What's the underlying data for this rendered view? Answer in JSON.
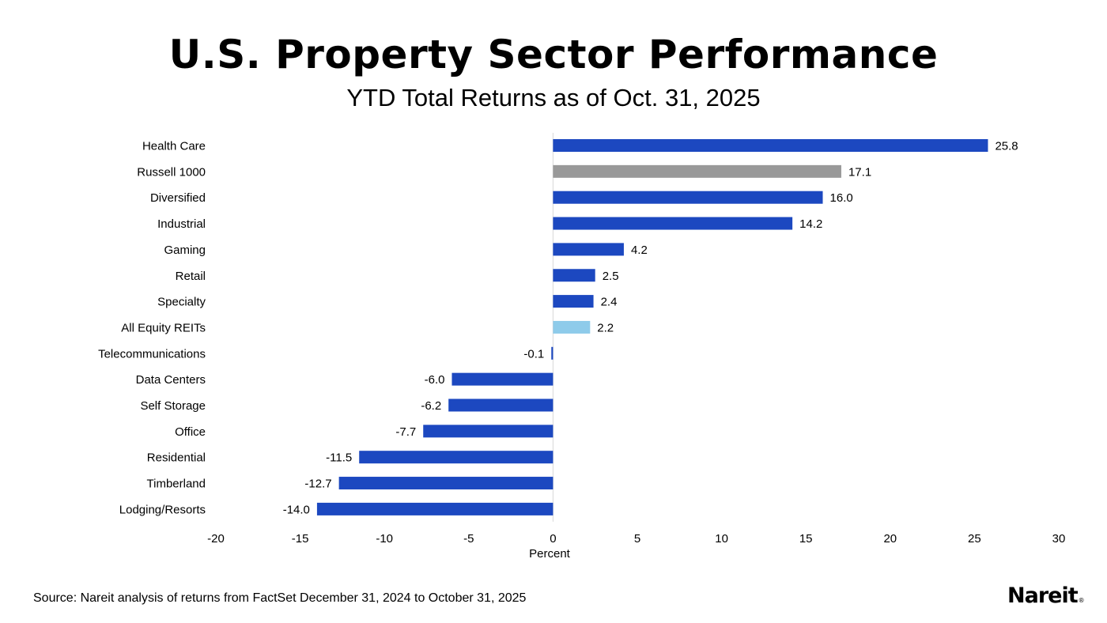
{
  "chart_data": {
    "type": "bar",
    "orientation": "horizontal",
    "title": "U.S. Property Sector Performance",
    "subtitle": "YTD Total Returns as of Oct. 31, 2025",
    "xlabel": "Percent",
    "ylabel": "",
    "xlim": [
      -20,
      30
    ],
    "xticks": [
      -20,
      -15,
      -10,
      -5,
      0,
      5,
      10,
      15,
      20,
      25,
      30
    ],
    "grid": false,
    "categories": [
      "Health Care",
      "Russell 1000",
      "Diversified",
      "Industrial",
      "Gaming",
      "Retail",
      "Specialty",
      "All Equity REITs",
      "Telecommunications",
      "Data Centers",
      "Self Storage",
      "Office",
      "Residential",
      "Timberland",
      "Lodging/Resorts"
    ],
    "values": [
      25.8,
      17.1,
      16.0,
      14.2,
      4.2,
      2.5,
      2.4,
      2.2,
      -0.1,
      -6.0,
      -6.2,
      -7.7,
      -11.5,
      -12.7,
      -14.0
    ],
    "data_labels": [
      "25.8",
      "17.1",
      "16.0",
      "14.2",
      "4.2",
      "2.5",
      "2.4",
      "2.2",
      "-0.1",
      "-6.0",
      "-6.2",
      "-7.7",
      "-11.5",
      "-12.7",
      "-14.0"
    ],
    "colors": {
      "default": "#1c48c0",
      "Russell 1000": "#999999",
      "All Equity REITs": "#8ecbea"
    }
  },
  "footer": {
    "source": "Source: Nareit analysis of returns from FactSet December 31, 2024 to October 31, 2025",
    "logo": "Nareit"
  }
}
